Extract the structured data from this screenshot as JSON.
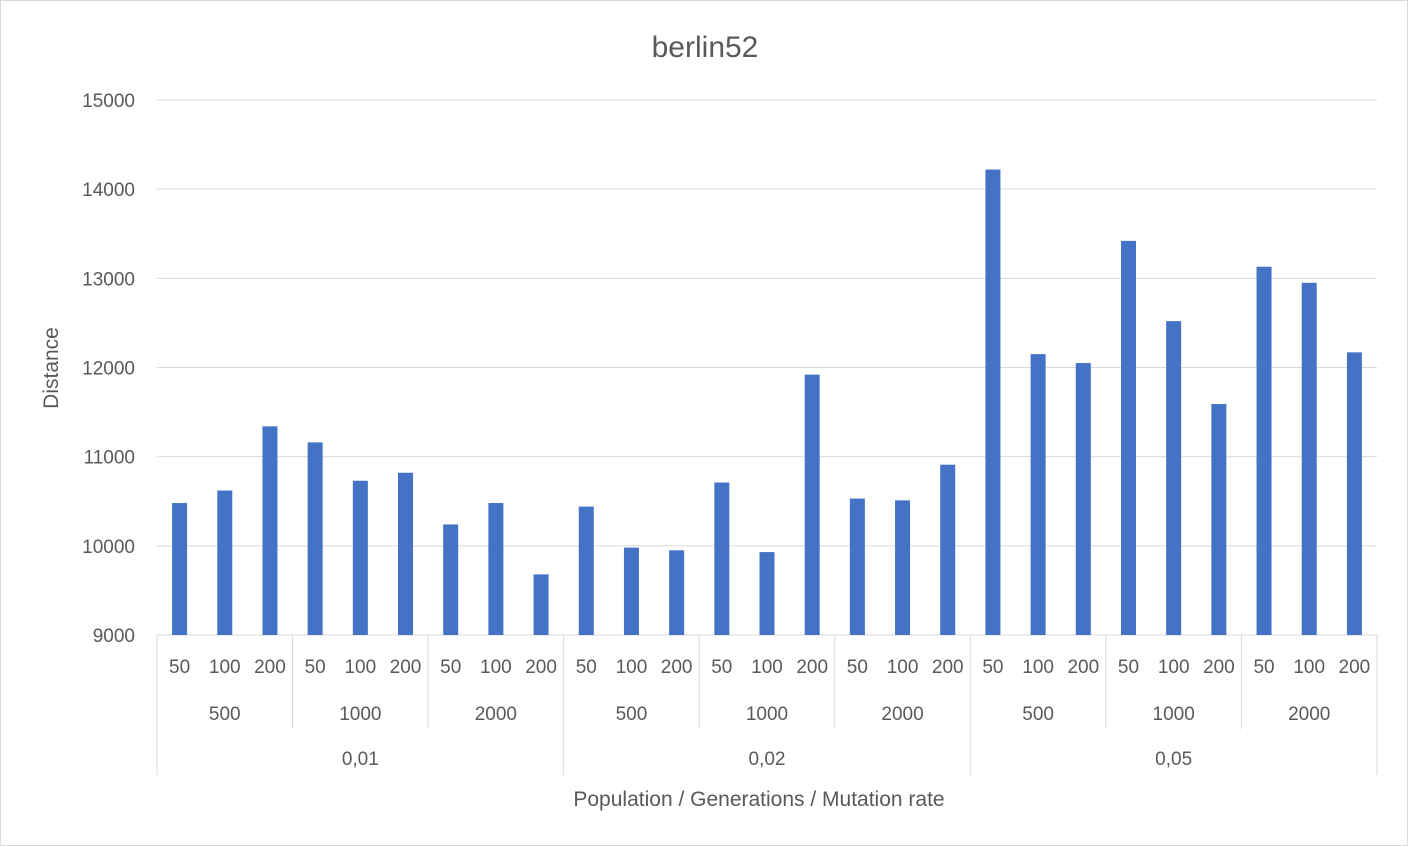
{
  "chart_data": {
    "type": "bar",
    "title": "berlin52",
    "xlabel": "Population / Generations / Mutation rate",
    "ylabel": "Distance",
    "ylim": [
      9000,
      15000
    ],
    "yticks": [
      9000,
      10000,
      11000,
      12000,
      13000,
      14000,
      15000
    ],
    "grid": true,
    "colors": {
      "bar": "#4472c4",
      "text": "#595959",
      "grid": "#d9d9d9"
    },
    "levels": {
      "population": [
        "50",
        "100",
        "200"
      ],
      "generations": [
        "500",
        "1000",
        "2000"
      ],
      "mutation_rate": [
        "0,01",
        "0,02",
        "0,05"
      ]
    },
    "series": [
      {
        "name": "Distance",
        "values": [
          10480,
          10620,
          11340,
          11160,
          10730,
          10820,
          10240,
          10480,
          9680,
          10440,
          9980,
          9950,
          10710,
          9930,
          11920,
          10530,
          10510,
          10910,
          14220,
          12150,
          12050,
          13420,
          12520,
          11590,
          13130,
          12950,
          12170
        ]
      }
    ]
  }
}
